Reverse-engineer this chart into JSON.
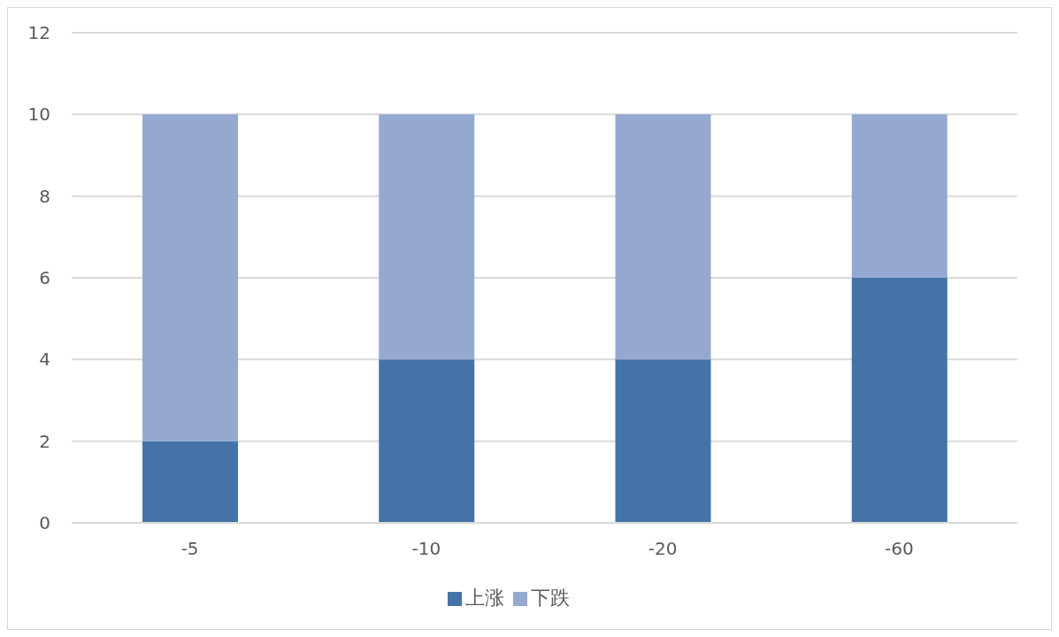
{
  "chart_data": {
    "type": "bar",
    "stacked": true,
    "categories": [
      "-5",
      "-10",
      "-20",
      "-60"
    ],
    "series": [
      {
        "name": "上涨",
        "color": "#4573a7",
        "values": [
          2,
          4,
          4,
          6
        ]
      },
      {
        "name": "下跌",
        "color": "#95a9d0",
        "values": [
          8,
          6,
          6,
          4
        ]
      }
    ],
    "ylim": [
      0,
      12
    ],
    "yticks": [
      0,
      2,
      4,
      6,
      8,
      10,
      12
    ],
    "grid": "y",
    "legend": "bottom"
  }
}
